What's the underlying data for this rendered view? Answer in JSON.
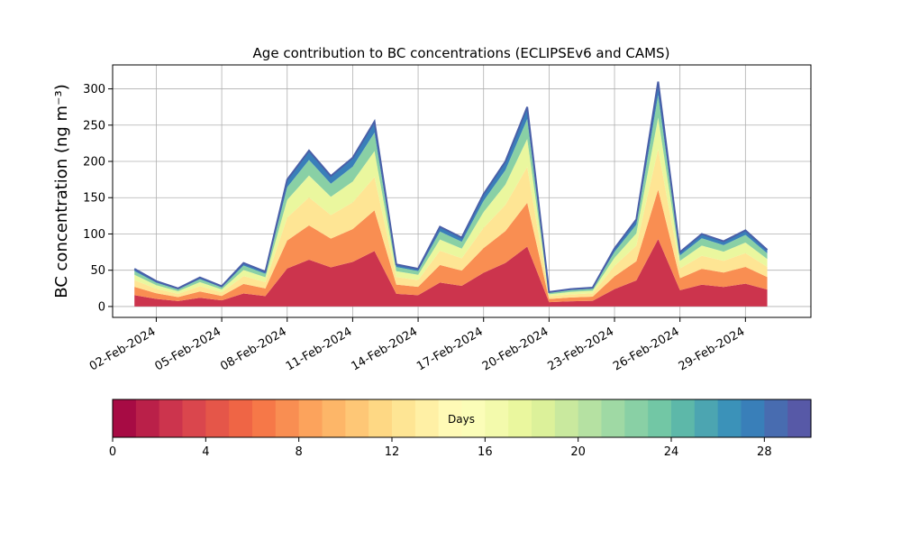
{
  "chart_data": {
    "type": "area",
    "title": "Age contribution to BC concentrations (ECLIPSEv6 and CAMS)",
    "ylabel": "BC concentration (ng m⁻³)",
    "xlabel": "",
    "ylim": [
      -15,
      333
    ],
    "xlim": [
      "2024-01-31",
      "2024-03-03"
    ],
    "grid": true,
    "yticks": [
      0,
      50,
      100,
      150,
      200,
      250,
      300
    ],
    "xticks": [
      "02-Feb-2024",
      "05-Feb-2024",
      "08-Feb-2024",
      "11-Feb-2024",
      "14-Feb-2024",
      "17-Feb-2024",
      "20-Feb-2024",
      "23-Feb-2024",
      "26-Feb-2024",
      "29-Feb-2024"
    ],
    "x": [
      "2024-02-01",
      "2024-02-02",
      "2024-02-03",
      "2024-02-04",
      "2024-02-05",
      "2024-02-06",
      "2024-02-07",
      "2024-02-08",
      "2024-02-09",
      "2024-02-10",
      "2024-02-11",
      "2024-02-12",
      "2024-02-13",
      "2024-02-14",
      "2024-02-15",
      "2024-02-16",
      "2024-02-17",
      "2024-02-18",
      "2024-02-19",
      "2024-02-20",
      "2024-02-21",
      "2024-02-22",
      "2024-02-23",
      "2024-02-24",
      "2024-02-25",
      "2024-02-26",
      "2024-02-27",
      "2024-02-28",
      "2024-02-29",
      "2024-03-01"
    ],
    "total": [
      52,
      35,
      25,
      40,
      28,
      60,
      48,
      175,
      215,
      180,
      205,
      255,
      58,
      52,
      110,
      95,
      155,
      200,
      275,
      20,
      24,
      26,
      80,
      120,
      310,
      75,
      100,
      90,
      105,
      78
    ],
    "age_bands": [
      "0-2",
      "2-5",
      "5-9",
      "9-14",
      "14-20",
      "20-30"
    ],
    "band_fractions": [
      0.3,
      0.22,
      0.18,
      0.14,
      0.1,
      0.06
    ],
    "colorbar": {
      "label": "Days",
      "min": 0,
      "max": 30,
      "n_bins": 30,
      "ticks": [
        0,
        4,
        8,
        12,
        16,
        20,
        24,
        28
      ],
      "colors": [
        "#9e0142",
        "#d53e4f",
        "#f46d43",
        "#fdae61",
        "#fee08b",
        "#ffffbf",
        "#e6f598",
        "#abdda4",
        "#66c2a5",
        "#3288bd",
        "#5e4fa2"
      ]
    }
  }
}
